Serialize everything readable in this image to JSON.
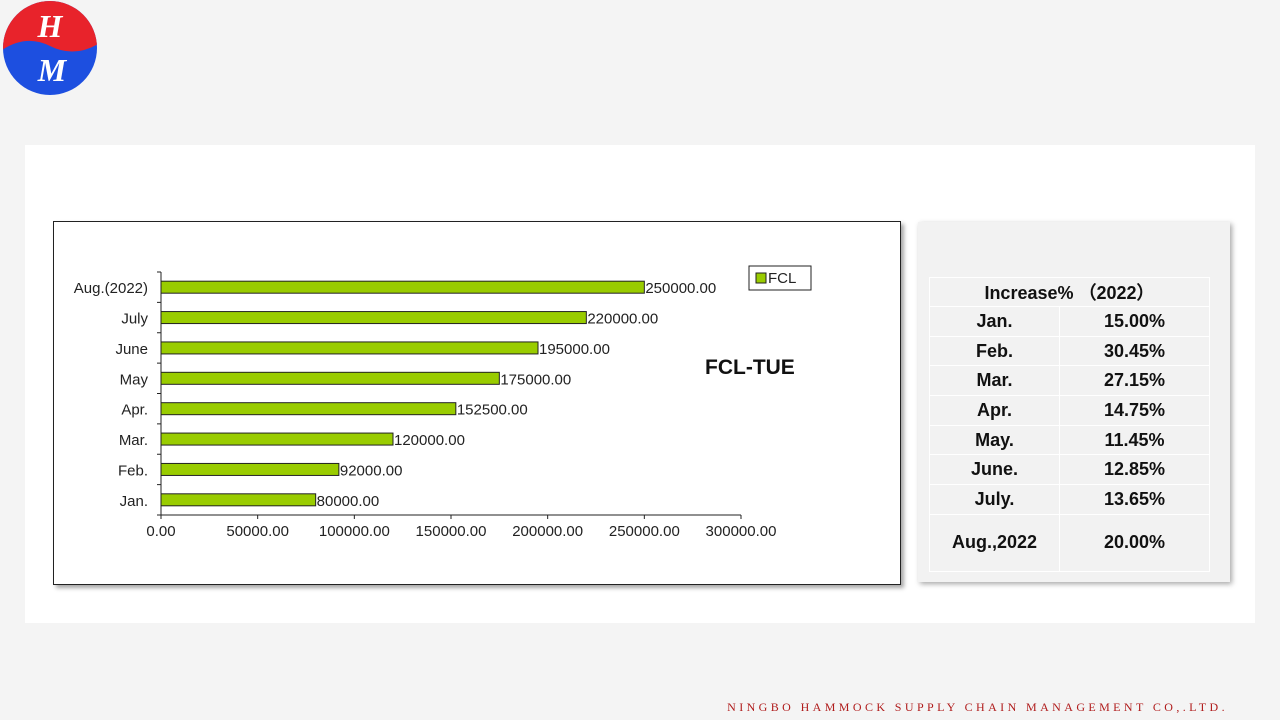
{
  "logo": {
    "top_letter": "H",
    "bottom_letter": "M",
    "colors": {
      "top": "#e8232b",
      "bottom": "#1d4fe0"
    }
  },
  "chart_data": {
    "type": "bar",
    "orientation": "horizontal",
    "title": "FCL-TUE",
    "categories": [
      "Jan.",
      "Feb.",
      "Mar.",
      "Apr.",
      "May",
      "June",
      "July",
      "Aug.(2022)"
    ],
    "series": [
      {
        "name": "FCL",
        "values": [
          80000,
          92000,
          120000,
          152500,
          175000,
          195000,
          220000,
          250000
        ],
        "color": "#99cc00"
      }
    ],
    "data_labels": [
      "80000.00",
      "92000.00",
      "120000.00",
      "152500.00",
      "175000.00",
      "195000.00",
      "220000.00",
      "250000.00"
    ],
    "x_ticks": [
      "0.00",
      "50000.00",
      "100000.00",
      "150000.00",
      "200000.00",
      "250000.00",
      "300000.00"
    ],
    "xlim": [
      0,
      300000
    ],
    "legend_position": "top-right",
    "grid": false
  },
  "table": {
    "header": "Increase%  （2022）",
    "rows": [
      {
        "month": "Jan.",
        "value": "15.00%"
      },
      {
        "month": "Feb.",
        "value": "30.45%"
      },
      {
        "month": "Mar.",
        "value": "27.15%"
      },
      {
        "month": "Apr.",
        "value": "14.75%"
      },
      {
        "month": "May.",
        "value": "11.45%"
      },
      {
        "month": "June.",
        "value": "12.85%"
      },
      {
        "month": "July.",
        "value": "13.65%"
      },
      {
        "month": "Aug.,2022",
        "value": "20.00%"
      }
    ]
  },
  "footer": "NINGBO HAMMOCK SUPPLY CHAIN MANAGEMENT CO,.LTD."
}
